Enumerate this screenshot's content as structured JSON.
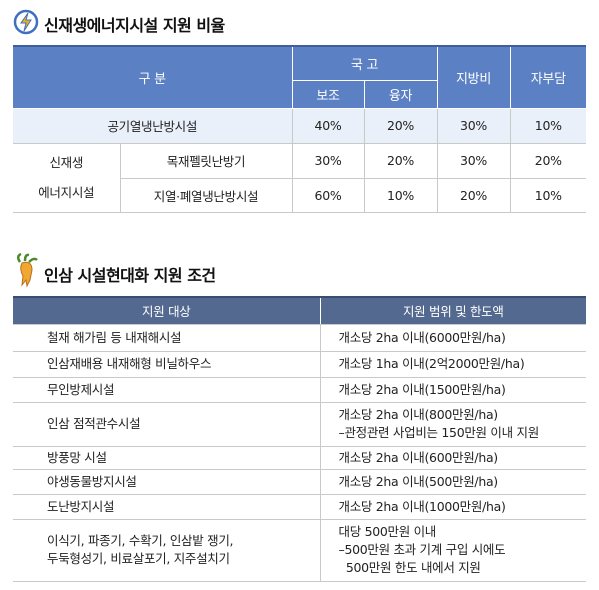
{
  "section1": {
    "title": "신재생에너지시설 지원 비율",
    "header": {
      "group": "구 분",
      "national": "국 고",
      "subsidy": "보조",
      "loan": "융자",
      "local": "지방비",
      "self": "자부담"
    },
    "first_row": {
      "label": "공기열냉난방시설",
      "values": [
        "40%",
        "20%",
        "30%",
        "10%"
      ]
    },
    "group_label": [
      "신재생",
      "에너지시설"
    ],
    "group_rows": [
      {
        "label": "목재펠릿난방기",
        "values": [
          "30%",
          "20%",
          "30%",
          "20%"
        ]
      },
      {
        "label": "지열·폐열냉난방시설",
        "values": [
          "60%",
          "10%",
          "20%",
          "10%"
        ]
      }
    ]
  },
  "section2": {
    "title": "인삼 시설현대화 지원 조건",
    "header": [
      "지원 대상",
      "지원 범위 및 한도액"
    ],
    "rows": [
      [
        [
          "철재 해가림 등 내재해시설"
        ],
        [
          "개소당 2ha 이내(6000만원/ha)"
        ]
      ],
      [
        [
          "인삼재배용 내재해형 비닐하우스"
        ],
        [
          "개소당 1ha 이내(2억2000만원/ha)"
        ]
      ],
      [
        [
          "무인방제시설"
        ],
        [
          "개소당 2ha 이내(1500만원/ha)"
        ]
      ],
      [
        [
          "인삼 점적관수시설"
        ],
        [
          "개소당 2ha 이내(800만원/ha)",
          "–관정관련 사업비는 150만원 이내 지원"
        ]
      ],
      [
        [
          "방풍망 시설"
        ],
        [
          "개소당 2ha 이내(600만원/ha)"
        ]
      ],
      [
        [
          "야생동물방지시설"
        ],
        [
          "개소당 2ha 이내(500만원/ha)"
        ]
      ],
      [
        [
          "도난방지시설"
        ],
        [
          "개소당 2ha 이내(1000만원/ha)"
        ]
      ],
      [
        [
          "이식기, 파종기, 수확기, 인삼밭 쟁기,",
          "두둑형성기, 비료살포기, 지주설치기"
        ],
        [
          "대당 500만원 이내",
          "–500만원 초과 기계 구입 시에도",
          "  500만원 한도 내에서 지원"
        ]
      ]
    ]
  }
}
